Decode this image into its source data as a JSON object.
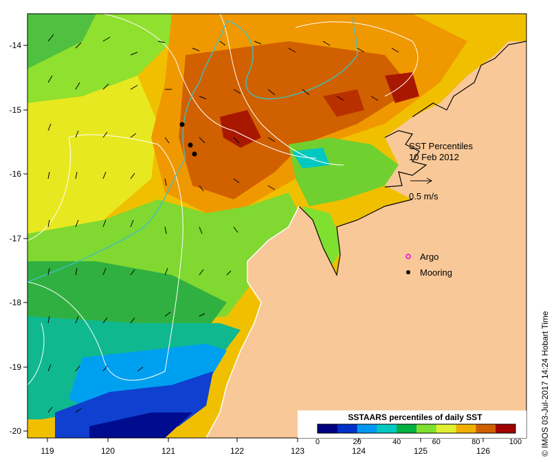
{
  "map": {
    "x_ticks": [
      "119",
      "120",
      "121",
      "122",
      "123",
      "124",
      "125",
      "126"
    ],
    "y_ticks": [
      "-14",
      "-15",
      "-16",
      "-17",
      "-18",
      "-19",
      "-20"
    ],
    "title_line1": "SST Percentiles",
    "title_line2": "10 Feb 2012",
    "vector_scale_label": "0.5 m/s",
    "legend_argo": "Argo",
    "legend_mooring": "Mooring",
    "credit": "©  IMOS 03-Jul-2017 14:24 Hobart Time",
    "colorbar": {
      "title": "SSTAARS percentiles of daily SST",
      "ticks": [
        "0",
        "20",
        "40",
        "60",
        "80",
        "100"
      ],
      "colors": [
        "#000080",
        "#0030c8",
        "#0098f0",
        "#00c8c0",
        "#00b040",
        "#80e030",
        "#e0f030",
        "#f0b000",
        "#d06000",
        "#a00000"
      ]
    },
    "land_color": "#f8c898"
  }
}
